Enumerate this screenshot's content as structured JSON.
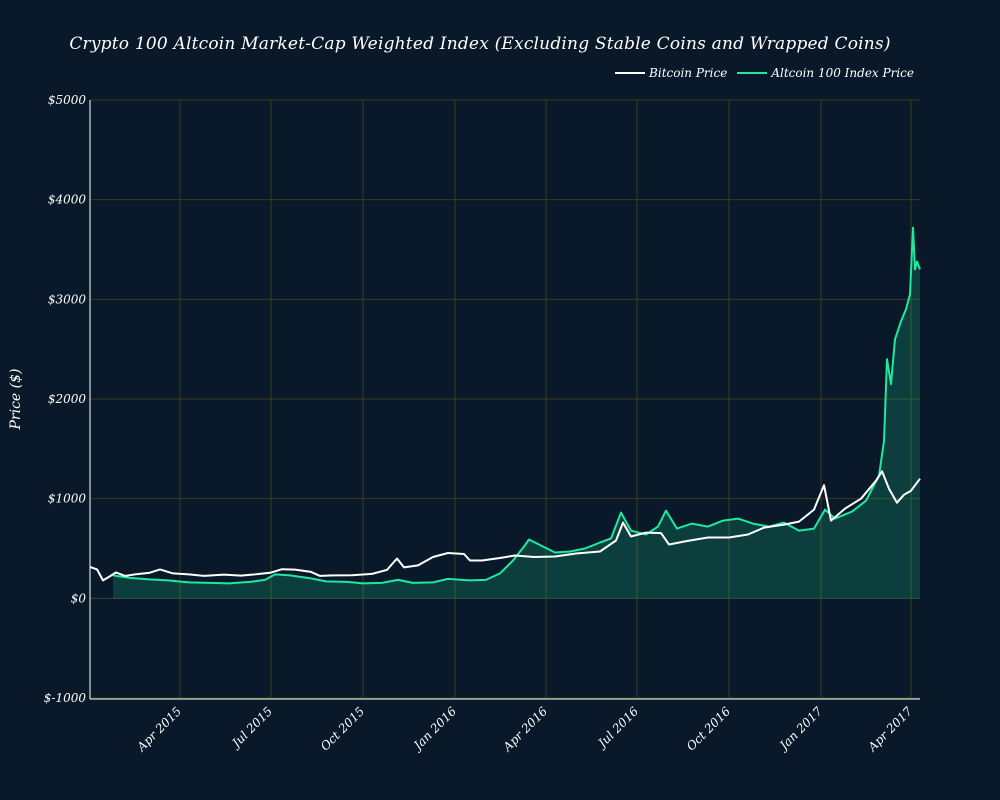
{
  "chart_data": {
    "type": "line",
    "title": "Crypto 100 Altcoin Market-Cap Weighted Index (Excluding Stable Coins and Wrapped Coins)",
    "xlabel": "",
    "ylabel": "Price ($)",
    "ylim": [
      -1000,
      5000
    ],
    "xlim": [
      "2015-01-01",
      "2017-04-10"
    ],
    "grid": true,
    "legend_position": "top-right",
    "y_ticks": [
      -1000,
      0,
      1000,
      2000,
      3000,
      4000,
      5000
    ],
    "y_tick_labels": [
      "$-1000",
      "$0",
      "$1000",
      "$2000",
      "$3000",
      "$4000",
      "$5000"
    ],
    "x_ticks": [
      "2015-04-01",
      "2015-07-01",
      "2015-10-01",
      "2016-01-01",
      "2016-04-01",
      "2016-07-01",
      "2016-10-01",
      "2017-01-01",
      "2017-04-01"
    ],
    "x_tick_labels": [
      "Apr 2015",
      "Jul 2015",
      "Oct 2015",
      "Jan 2016",
      "Apr 2016",
      "Jul 2016",
      "Oct 2016",
      "Jan 2017",
      "Apr 2017"
    ],
    "series": [
      {
        "name": "Bitcoin Price",
        "color": "#ffffff",
        "fill": false,
        "points": [
          [
            "2015-01-01",
            315
          ],
          [
            "2015-01-08",
            290
          ],
          [
            "2015-01-14",
            180
          ],
          [
            "2015-01-20",
            215
          ],
          [
            "2015-01-27",
            260
          ],
          [
            "2015-02-05",
            225
          ],
          [
            "2015-02-15",
            240
          ],
          [
            "2015-03-01",
            255
          ],
          [
            "2015-03-12",
            290
          ],
          [
            "2015-03-25",
            250
          ],
          [
            "2015-04-10",
            240
          ],
          [
            "2015-04-25",
            225
          ],
          [
            "2015-05-15",
            238
          ],
          [
            "2015-06-01",
            228
          ],
          [
            "2015-06-15",
            240
          ],
          [
            "2015-07-01",
            258
          ],
          [
            "2015-07-12",
            292
          ],
          [
            "2015-07-25",
            288
          ],
          [
            "2015-08-10",
            265
          ],
          [
            "2015-08-19",
            225
          ],
          [
            "2015-09-01",
            230
          ],
          [
            "2015-09-20",
            232
          ],
          [
            "2015-10-10",
            245
          ],
          [
            "2015-10-25",
            285
          ],
          [
            "2015-11-04",
            400
          ],
          [
            "2015-11-11",
            310
          ],
          [
            "2015-11-25",
            330
          ],
          [
            "2015-12-10",
            415
          ],
          [
            "2015-12-25",
            455
          ],
          [
            "2016-01-10",
            445
          ],
          [
            "2016-01-16",
            380
          ],
          [
            "2016-01-28",
            380
          ],
          [
            "2016-02-15",
            405
          ],
          [
            "2016-03-01",
            430
          ],
          [
            "2016-03-20",
            415
          ],
          [
            "2016-04-10",
            420
          ],
          [
            "2016-05-01",
            450
          ],
          [
            "2016-05-25",
            470
          ],
          [
            "2016-06-10",
            580
          ],
          [
            "2016-06-17",
            760
          ],
          [
            "2016-06-25",
            620
          ],
          [
            "2016-07-10",
            660
          ],
          [
            "2016-07-25",
            655
          ],
          [
            "2016-08-02",
            540
          ],
          [
            "2016-08-20",
            575
          ],
          [
            "2016-09-10",
            610
          ],
          [
            "2016-10-01",
            610
          ],
          [
            "2016-10-20",
            640
          ],
          [
            "2016-11-05",
            710
          ],
          [
            "2016-11-25",
            740
          ],
          [
            "2016-12-10",
            770
          ],
          [
            "2016-12-25",
            890
          ],
          [
            "2017-01-04",
            1135
          ],
          [
            "2017-01-11",
            780
          ],
          [
            "2017-01-25",
            900
          ],
          [
            "2017-02-10",
            1000
          ],
          [
            "2017-02-25",
            1180
          ],
          [
            "2017-03-03",
            1275
          ],
          [
            "2017-03-10",
            1100
          ],
          [
            "2017-03-18",
            960
          ],
          [
            "2017-03-25",
            1040
          ],
          [
            "2017-04-01",
            1080
          ],
          [
            "2017-04-10",
            1200
          ]
        ]
      },
      {
        "name": "Altcoin 100 Index Price",
        "color": "#1de9a0",
        "fill": true,
        "points": [
          [
            "2015-01-24",
            230
          ],
          [
            "2015-02-10",
            205
          ],
          [
            "2015-03-01",
            190
          ],
          [
            "2015-03-20",
            180
          ],
          [
            "2015-04-10",
            160
          ],
          [
            "2015-05-01",
            155
          ],
          [
            "2015-05-20",
            150
          ],
          [
            "2015-06-10",
            165
          ],
          [
            "2015-06-25",
            185
          ],
          [
            "2015-07-05",
            240
          ],
          [
            "2015-07-20",
            230
          ],
          [
            "2015-08-10",
            200
          ],
          [
            "2015-08-25",
            170
          ],
          [
            "2015-09-15",
            165
          ],
          [
            "2015-10-01",
            150
          ],
          [
            "2015-10-20",
            155
          ],
          [
            "2015-11-05",
            185
          ],
          [
            "2015-11-20",
            155
          ],
          [
            "2015-12-10",
            160
          ],
          [
            "2015-12-25",
            195
          ],
          [
            "2016-01-15",
            180
          ],
          [
            "2016-02-01",
            185
          ],
          [
            "2016-02-15",
            250
          ],
          [
            "2016-02-28",
            380
          ],
          [
            "2016-03-10",
            520
          ],
          [
            "2016-03-15",
            590
          ],
          [
            "2016-03-25",
            540
          ],
          [
            "2016-04-10",
            460
          ],
          [
            "2016-04-25",
            470
          ],
          [
            "2016-05-10",
            500
          ],
          [
            "2016-05-25",
            560
          ],
          [
            "2016-06-05",
            600
          ],
          [
            "2016-06-15",
            860
          ],
          [
            "2016-06-25",
            680
          ],
          [
            "2016-07-10",
            640
          ],
          [
            "2016-07-22",
            720
          ],
          [
            "2016-07-30",
            880
          ],
          [
            "2016-08-10",
            700
          ],
          [
            "2016-08-25",
            750
          ],
          [
            "2016-09-10",
            720
          ],
          [
            "2016-09-25",
            780
          ],
          [
            "2016-10-10",
            800
          ],
          [
            "2016-10-25",
            750
          ],
          [
            "2016-11-10",
            720
          ],
          [
            "2016-11-25",
            760
          ],
          [
            "2016-12-10",
            680
          ],
          [
            "2016-12-25",
            700
          ],
          [
            "2017-01-05",
            890
          ],
          [
            "2017-01-15",
            800
          ],
          [
            "2017-02-01",
            870
          ],
          [
            "2017-02-15",
            980
          ],
          [
            "2017-02-28",
            1230
          ],
          [
            "2017-03-05",
            1580
          ],
          [
            "2017-03-08",
            2400
          ],
          [
            "2017-03-12",
            2150
          ],
          [
            "2017-03-16",
            2600
          ],
          [
            "2017-03-22",
            2780
          ],
          [
            "2017-03-27",
            2900
          ],
          [
            "2017-03-31",
            3050
          ],
          [
            "2017-04-03",
            3720
          ],
          [
            "2017-04-05",
            3300
          ],
          [
            "2017-04-07",
            3380
          ],
          [
            "2017-04-10",
            3300
          ]
        ]
      }
    ]
  }
}
